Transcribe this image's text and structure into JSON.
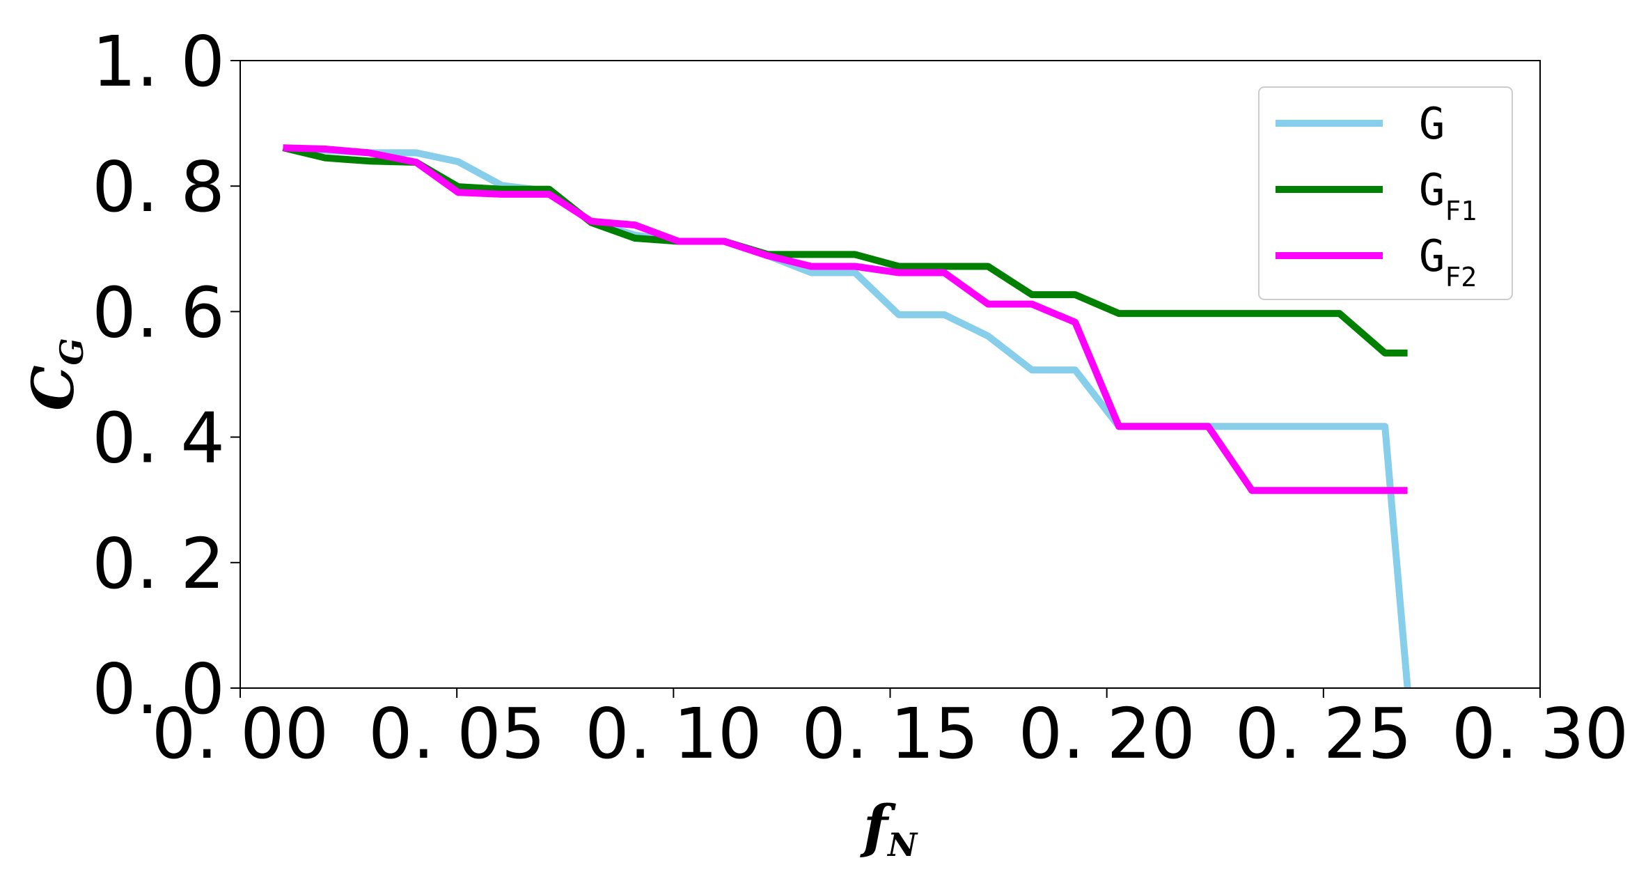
{
  "chart_data": {
    "type": "line",
    "title": "",
    "xlabel": "f",
    "xlabel_sub": "N",
    "ylabel": "C",
    "ylabel_sub": "G",
    "xlim": [
      0.0,
      0.3
    ],
    "ylim": [
      0.0,
      1.0
    ],
    "xticks": [
      0.0,
      0.05,
      0.1,
      0.15,
      0.2,
      0.25,
      0.3
    ],
    "xtick_labels": [
      "0. 00",
      "0. 05",
      "0. 10",
      "0. 15",
      "0. 20",
      "0. 25",
      "0. 30"
    ],
    "yticks": [
      0.0,
      0.2,
      0.4,
      0.6,
      0.8,
      1.0
    ],
    "ytick_labels": [
      "0. 0",
      "0. 2",
      "0. 4",
      "0. 6",
      "0. 8",
      "1. 0"
    ],
    "grid": false,
    "legend_position": "upper right",
    "series": [
      {
        "name": "G",
        "name_sub": "",
        "color": "#87CEEB",
        "x": [
          0.0099,
          0.0196,
          0.0297,
          0.0406,
          0.0503,
          0.0604,
          0.0713,
          0.081,
          0.0911,
          0.1012,
          0.1117,
          0.1218,
          0.1318,
          0.1419,
          0.152,
          0.1625,
          0.1726,
          0.1827,
          0.1927,
          0.2028,
          0.2133,
          0.2234,
          0.2335,
          0.2436,
          0.2537,
          0.2642,
          0.2694
        ],
        "y": [
          0.861,
          0.857,
          0.853,
          0.853,
          0.839,
          0.801,
          0.792,
          0.743,
          0.722,
          0.712,
          0.712,
          0.689,
          0.662,
          0.662,
          0.595,
          0.595,
          0.561,
          0.507,
          0.507,
          0.417,
          0.417,
          0.417,
          0.417,
          0.417,
          0.417,
          0.417,
          0.0
        ]
      },
      {
        "name": "G",
        "name_sub": "F1",
        "color": "#008000",
        "x": [
          0.0099,
          0.0196,
          0.0297,
          0.0406,
          0.0503,
          0.0604,
          0.0713,
          0.081,
          0.0911,
          0.1012,
          0.1117,
          0.1218,
          0.1318,
          0.1419,
          0.152,
          0.1625,
          0.1726,
          0.1827,
          0.1927,
          0.2028,
          0.2133,
          0.2234,
          0.2335,
          0.2436,
          0.2537,
          0.2642,
          0.2694
        ],
        "y": [
          0.861,
          0.845,
          0.84,
          0.838,
          0.799,
          0.795,
          0.795,
          0.742,
          0.717,
          0.712,
          0.712,
          0.691,
          0.691,
          0.691,
          0.672,
          0.672,
          0.672,
          0.627,
          0.627,
          0.597,
          0.597,
          0.597,
          0.597,
          0.597,
          0.597,
          0.534,
          0.534
        ]
      },
      {
        "name": "G",
        "name_sub": "F2",
        "color": "#FF00FF",
        "x": [
          0.0099,
          0.0196,
          0.0297,
          0.0406,
          0.0503,
          0.0604,
          0.0713,
          0.081,
          0.0911,
          0.1012,
          0.1117,
          0.1218,
          0.1318,
          0.1419,
          0.152,
          0.1625,
          0.1726,
          0.1827,
          0.1927,
          0.2028,
          0.2133,
          0.2234,
          0.2335,
          0.2436,
          0.2537,
          0.2642,
          0.2694
        ],
        "y": [
          0.861,
          0.859,
          0.853,
          0.838,
          0.79,
          0.787,
          0.787,
          0.744,
          0.738,
          0.712,
          0.712,
          0.689,
          0.672,
          0.672,
          0.662,
          0.662,
          0.612,
          0.612,
          0.583,
          0.417,
          0.417,
          0.417,
          0.315,
          0.315,
          0.315,
          0.315,
          0.315
        ]
      }
    ]
  }
}
